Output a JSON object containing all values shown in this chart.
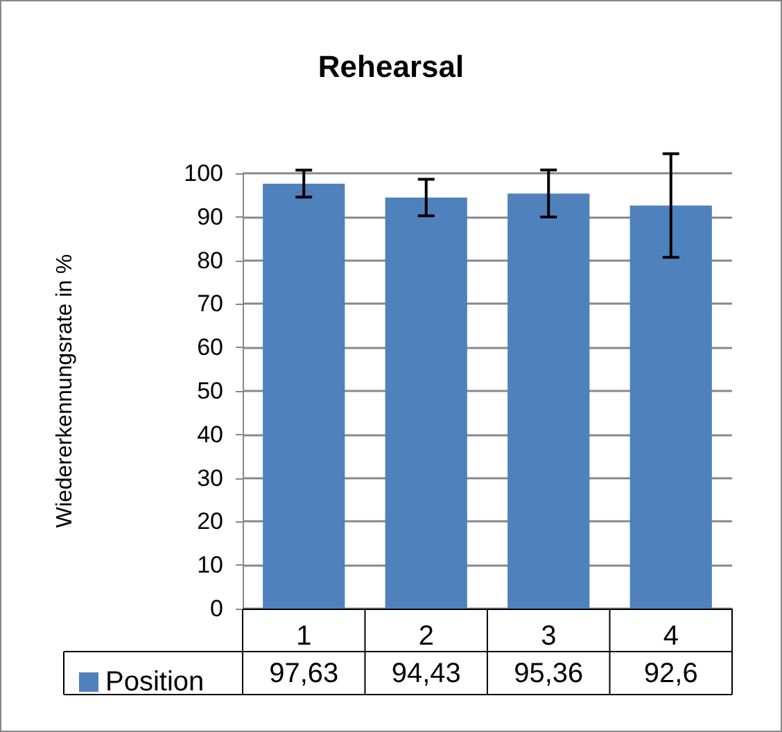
{
  "chart_data": {
    "type": "bar",
    "title": "Rehearsal",
    "ylabel": "Wiedererkennungsrate in %",
    "categories": [
      "1",
      "2",
      "3",
      "4"
    ],
    "series": [
      {
        "name": "Position",
        "color": "#4f81bd",
        "values": [
          97.63,
          94.43,
          95.36,
          92.6
        ],
        "errors": [
          3.1,
          4.2,
          5.4,
          11.9
        ],
        "value_labels": [
          "97,63",
          "94,43",
          "95,36",
          "92,6"
        ]
      }
    ],
    "ylim": [
      0,
      100
    ],
    "yticks": [
      0,
      10,
      20,
      30,
      40,
      50,
      60,
      70,
      80,
      90,
      100
    ],
    "grid": "y",
    "legend": "bottom"
  }
}
